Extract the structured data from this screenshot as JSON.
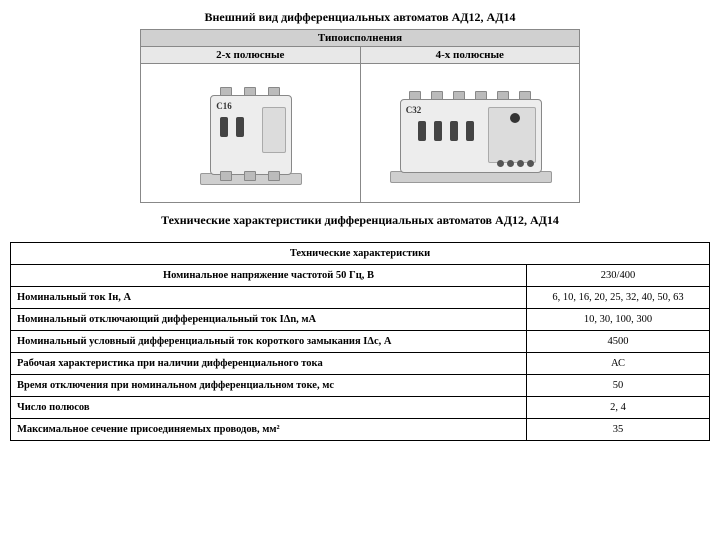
{
  "title": "Внешний вид дифференциальных автоматов АД12, АД14",
  "typeTable": {
    "header": "Типоисполнения",
    "col1": "2-х полюсные",
    "col2": "4-х полюсные",
    "label2p": "С16",
    "label4p": "С32"
  },
  "subtitle": "Технические характеристики дифференциальных автоматов АД12, АД14",
  "spec": {
    "header": "Технические характеристики",
    "row1_param": "Номинальное напряжение частотой 50 Гц, В",
    "row1_val": "230/400",
    "rows": [
      {
        "param": "Номинальный ток Iн, А",
        "val": "6, 10, 16, 20, 25, 32, 40, 50, 63"
      },
      {
        "param": "Номинальный отключающий дифференциальный ток IΔn, мА",
        "val": "10, 30, 100, 300"
      },
      {
        "param": "Номинальный условный дифференциальный ток короткого замыкания IΔс, А",
        "val": "4500"
      },
      {
        "param": "Рабочая характеристика при наличии дифференциального тока",
        "val": "АС"
      },
      {
        "param": "Время отключения при номинальном дифференциальном токе, мс",
        "val": "50"
      },
      {
        "param": "Число полюсов",
        "val": "2, 4"
      },
      {
        "param": "Максимальное сечение присоединяемых проводов, мм²",
        "val": "35"
      }
    ]
  }
}
